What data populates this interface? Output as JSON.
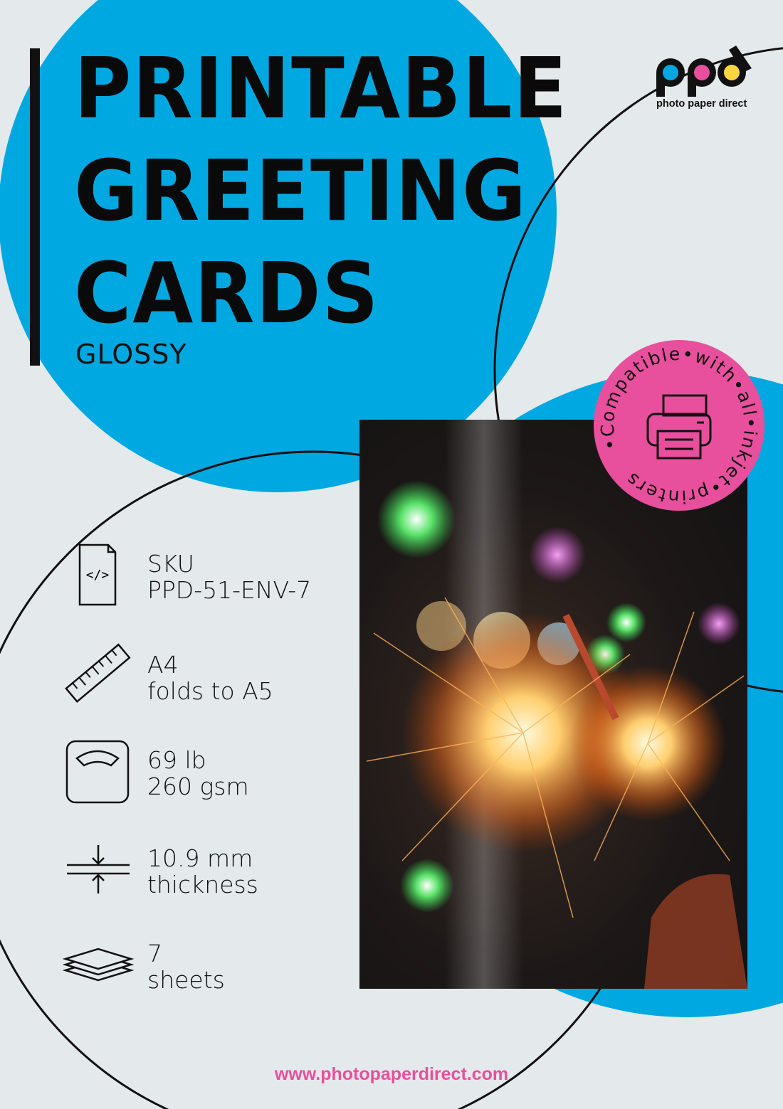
{
  "colors": {
    "background": "#e4e9eb",
    "brand_blue": "#00a8e1",
    "brand_pink": "#e84f9c",
    "brand_yellow": "#ffd640",
    "text": "#111111"
  },
  "title": {
    "lines": [
      "PRINTABLE",
      "GREETING",
      "CARDS"
    ],
    "subtitle": "GLOSSY"
  },
  "logo": {
    "mark": "ppd",
    "tagline": "photo paper direct"
  },
  "badge": {
    "text": "•Compatible•with•all•inkjet•printers",
    "icon": "printer-icon"
  },
  "specs": [
    {
      "icon": "code-file-icon",
      "line1": "SKU",
      "line2": "PPD-51-ENV-7"
    },
    {
      "icon": "ruler-icon",
      "line1": "A4",
      "line2": "folds to A5"
    },
    {
      "icon": "scale-icon",
      "line1": "69 lb",
      "line2": "260 gsm"
    },
    {
      "icon": "thickness-icon",
      "line1": "10.9 mm",
      "line2": "thickness"
    },
    {
      "icon": "sheets-stack-icon",
      "line1": "7",
      "line2": "sheets"
    }
  ],
  "website": "www.photopaperdirect.com"
}
